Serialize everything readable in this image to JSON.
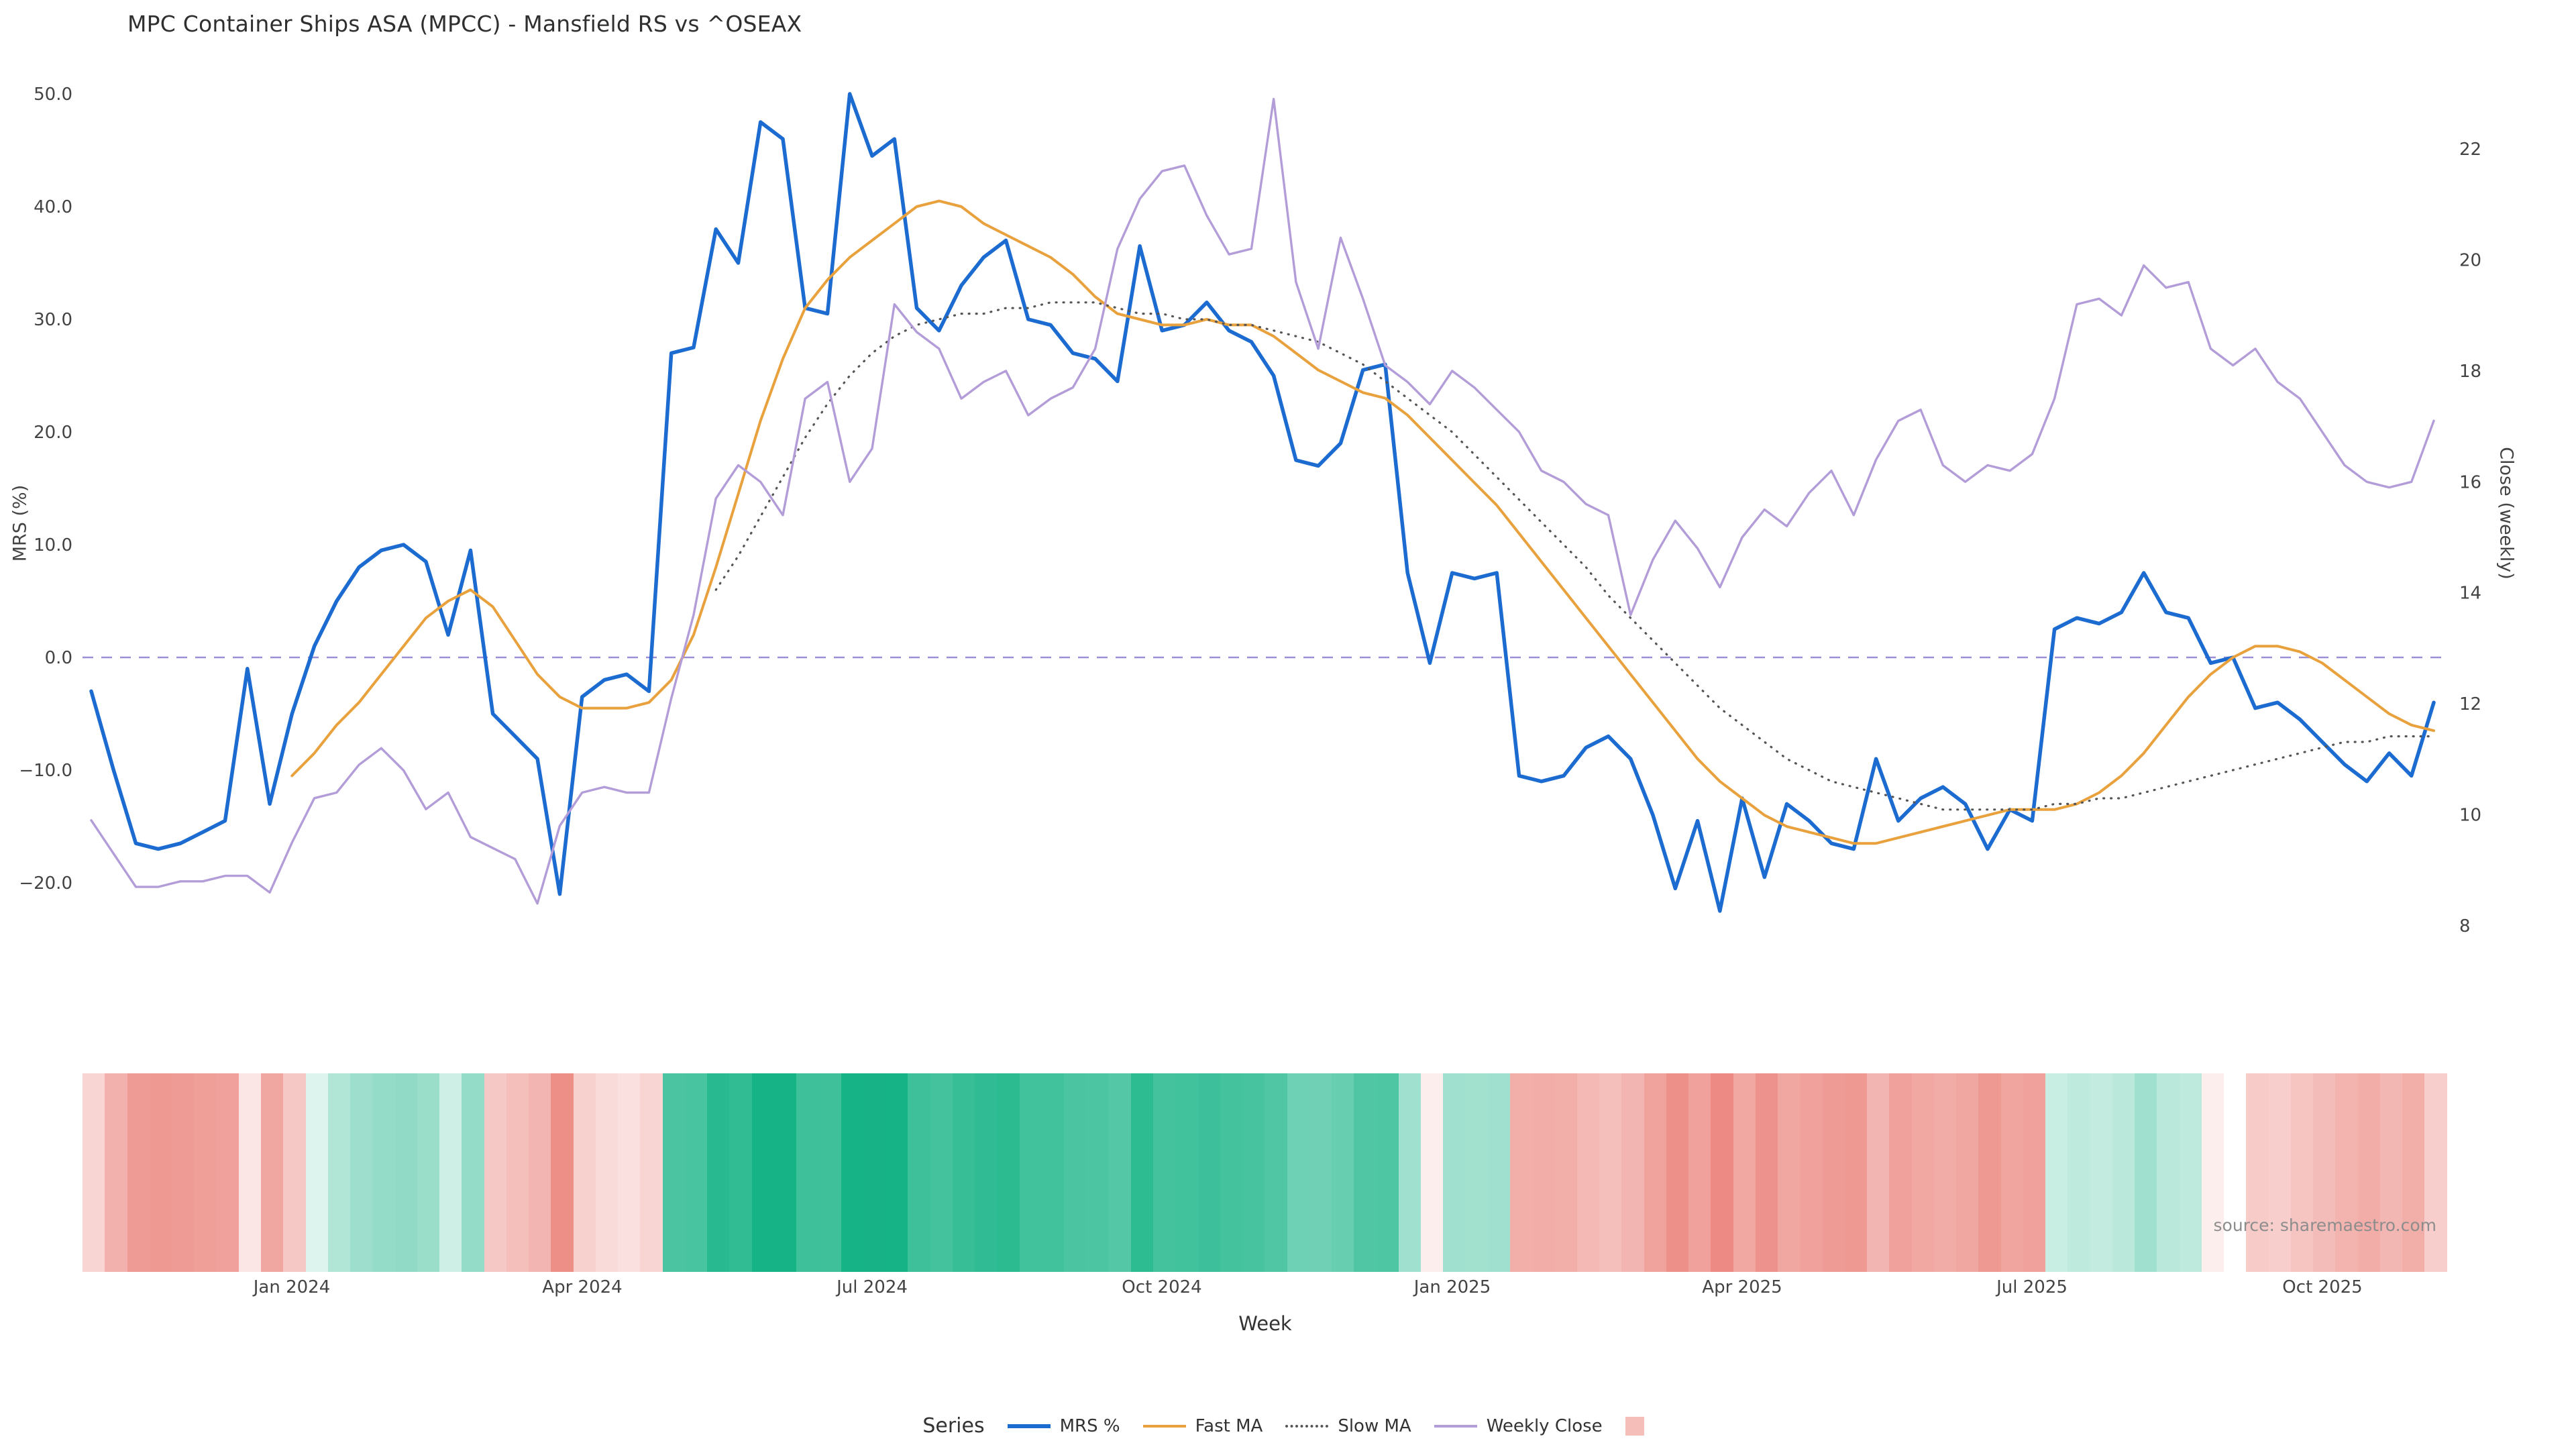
{
  "title": "MPC Container Ships ASA (MPCC) - Mansfield RS vs ^OSEAX",
  "source": "source: sharemaestro.com",
  "axes": {
    "left_label": "MRS (%)",
    "right_label": "Close (weekly)",
    "x_label": "Week",
    "left_ticks": [
      {
        "value": 50,
        "label": "50.0"
      },
      {
        "value": 40,
        "label": "40.0"
      },
      {
        "value": 30,
        "label": "30.0"
      },
      {
        "value": 20,
        "label": "20.0"
      },
      {
        "value": 10,
        "label": "10.0"
      },
      {
        "value": 0,
        "label": "0.0"
      },
      {
        "value": -10,
        "label": "−10.0"
      },
      {
        "value": -20,
        "label": "−20.0"
      }
    ],
    "right_ticks": [
      {
        "value": 22,
        "label": "22"
      },
      {
        "value": 20,
        "label": "20"
      },
      {
        "value": 18,
        "label": "18"
      },
      {
        "value": 16,
        "label": "16"
      },
      {
        "value": 14,
        "label": "14"
      },
      {
        "value": 12,
        "label": "12"
      },
      {
        "value": 10,
        "label": "10"
      },
      {
        "value": 8,
        "label": "8"
      }
    ]
  },
  "legend": {
    "title": "Series",
    "items": [
      {
        "label": "MRS %",
        "type": "line",
        "color": "#1c6bd0",
        "thick": true
      },
      {
        "label": "Fast MA",
        "type": "line",
        "color": "#e8a13c",
        "thick": false
      },
      {
        "label": "Slow MA",
        "type": "dotted-line",
        "color": "#555555",
        "thick": false
      },
      {
        "label": "Weekly Close",
        "type": "line",
        "color": "#b39dd8",
        "thick": false
      },
      {
        "label": "",
        "type": "swatch",
        "color": "#f5beb8"
      }
    ]
  },
  "chart_data": {
    "type": "line",
    "title": "MPC Container Ships ASA (MPCC) - Mansfield RS vs ^OSEAX",
    "xlabel": "Week",
    "ylabel_left": "MRS (%)",
    "ylabel_right": "Close (weekly)",
    "x_frequency": "weekly",
    "x_range_approx": [
      "2023-10-30",
      "2025-11-03"
    ],
    "ylim_left": [
      -27,
      52
    ],
    "ylim_right": [
      7.5,
      23.5
    ],
    "grid": false,
    "legend_position": "bottom",
    "zero_line": {
      "value": 0,
      "color": "#9d8fd6",
      "style": "dashed"
    },
    "x_ticks": [
      {
        "label": "Jan 2024",
        "week_index": 9
      },
      {
        "label": "Apr 2024",
        "week_index": 22
      },
      {
        "label": "Jul 2024",
        "week_index": 35
      },
      {
        "label": "Oct 2024",
        "week_index": 48
      },
      {
        "label": "Jan 2025",
        "week_index": 61
      },
      {
        "label": "Apr 2025",
        "week_index": 74
      },
      {
        "label": "Jul 2025",
        "week_index": 87
      },
      {
        "label": "Oct 2025",
        "week_index": 100
      }
    ],
    "series": [
      {
        "name": "MRS %",
        "axis": "left",
        "color": "#1c6bd0",
        "width": 5.5,
        "dash": null,
        "values": [
          -3,
          -10,
          -16.5,
          -17,
          -16.5,
          -15.5,
          -14.5,
          -1,
          -13,
          -5,
          1,
          5,
          8,
          9.5,
          10,
          8.5,
          2,
          9.5,
          -5,
          -7,
          -9,
          -21,
          -3.5,
          -2,
          -1.5,
          -3,
          27,
          27.5,
          38,
          35,
          47.5,
          46,
          31,
          30.5,
          50,
          44.5,
          46,
          31,
          29,
          33,
          35.5,
          37,
          30,
          29.5,
          27,
          26.5,
          24.5,
          36.5,
          29,
          29.5,
          31.5,
          29,
          28,
          25,
          17.5,
          17,
          19,
          25.5,
          26,
          7.5,
          -0.5,
          7.5,
          7,
          7.5,
          -10.5,
          -11,
          -10.5,
          -8,
          -7,
          -9,
          -14,
          -20.5,
          -14.5,
          -22.5,
          -12.5,
          -19.5,
          -13,
          -14.5,
          -16.5,
          -17,
          -9,
          -14.5,
          -12.5,
          -11.5,
          -13,
          -17,
          -13.5,
          -14.5,
          2.5,
          3.5,
          3,
          4,
          7.5,
          4,
          3.5,
          -0.5,
          0,
          -4.5,
          -4,
          -5.5,
          -7.5,
          -9.5,
          -11,
          -8.5,
          -10.5,
          -4
        ]
      },
      {
        "name": "Fast MA",
        "axis": "left",
        "color": "#e8a13c",
        "width": 4,
        "dash": null,
        "values": [
          null,
          null,
          null,
          null,
          null,
          null,
          null,
          null,
          null,
          -10.5,
          -8.5,
          -6,
          -4,
          -1.5,
          1,
          3.5,
          5,
          6,
          4.5,
          1.5,
          -1.5,
          -3.5,
          -4.5,
          -4.5,
          -4.5,
          -4,
          -2,
          2,
          8,
          14.5,
          21,
          26.5,
          31,
          33.5,
          35.5,
          37,
          38.5,
          40,
          40.5,
          40,
          38.5,
          37.5,
          36.5,
          35.5,
          34,
          32,
          30.5,
          30,
          29.5,
          29.5,
          30,
          29.5,
          29.5,
          28.5,
          27,
          25.5,
          24.5,
          23.5,
          23,
          21.5,
          19.5,
          17.5,
          15.5,
          13.5,
          11,
          8.5,
          6,
          3.5,
          1,
          -1.5,
          -4,
          -6.5,
          -9,
          -11,
          -12.5,
          -14,
          -15,
          -15.5,
          -16,
          -16.5,
          -16.5,
          -16,
          -15.5,
          -15,
          -14.5,
          -14,
          -13.5,
          -13.5,
          -13.5,
          -13,
          -12,
          -10.5,
          -8.5,
          -6,
          -3.5,
          -1.5,
          0,
          1,
          1,
          0.5,
          -0.5,
          -2,
          -3.5,
          -5,
          -6,
          -6.5
        ]
      },
      {
        "name": "Slow MA",
        "axis": "left",
        "color": "#555555",
        "width": 3.2,
        "dash": "1 10",
        "values": [
          null,
          null,
          null,
          null,
          null,
          null,
          null,
          null,
          null,
          null,
          null,
          null,
          null,
          null,
          null,
          null,
          null,
          null,
          null,
          null,
          null,
          null,
          null,
          null,
          null,
          null,
          null,
          null,
          6,
          9,
          12.5,
          16,
          19.5,
          22.5,
          25,
          27,
          28.5,
          29.5,
          30,
          30.5,
          30.5,
          31,
          31,
          31.5,
          31.5,
          31.5,
          31,
          30.5,
          30.5,
          30,
          30,
          29.5,
          29.5,
          29,
          28.5,
          28,
          27,
          26,
          24.5,
          23,
          21.5,
          20,
          18,
          16,
          14,
          12,
          10,
          8,
          5.5,
          3.5,
          1.5,
          -0.5,
          -2.5,
          -4.5,
          -6,
          -7.5,
          -9,
          -10,
          -11,
          -11.5,
          -12,
          -12.5,
          -13,
          -13.5,
          -13.5,
          -13.5,
          -13.5,
          -13.5,
          -13,
          -13,
          -12.5,
          -12.5,
          -12,
          -11.5,
          -11,
          -10.5,
          -10,
          -9.5,
          -9,
          -8.5,
          -8,
          -7.5,
          -7.5,
          -7,
          -7,
          -7
        ]
      },
      {
        "name": "Weekly Close",
        "axis": "right",
        "color": "#b39dd8",
        "width": 3.4,
        "dash": null,
        "values": [
          9.9,
          9.3,
          8.7,
          8.7,
          8.8,
          8.8,
          8.9,
          8.9,
          8.6,
          9.5,
          10.3,
          10.4,
          10.9,
          11.2,
          10.8,
          10.1,
          10.4,
          9.6,
          9.4,
          9.2,
          8.4,
          9.8,
          10.4,
          10.5,
          10.4,
          10.4,
          12.1,
          13.6,
          15.7,
          16.3,
          16.0,
          15.4,
          17.5,
          17.8,
          16.0,
          16.6,
          19.2,
          18.7,
          18.4,
          17.5,
          17.8,
          18.0,
          17.2,
          17.5,
          17.7,
          18.4,
          20.2,
          21.1,
          21.6,
          21.7,
          20.8,
          20.1,
          20.2,
          22.9,
          19.6,
          18.4,
          20.4,
          19.3,
          18.1,
          17.8,
          17.4,
          18.0,
          17.7,
          17.3,
          16.9,
          16.2,
          16.0,
          15.6,
          15.4,
          13.6,
          14.6,
          15.3,
          14.8,
          14.1,
          15.0,
          15.5,
          15.2,
          15.8,
          16.2,
          15.4,
          16.4,
          17.1,
          17.3,
          16.3,
          16.0,
          16.3,
          16.2,
          16.5,
          17.5,
          19.2,
          19.3,
          19.0,
          19.9,
          19.5,
          19.6,
          18.4,
          18.1,
          18.4,
          17.8,
          17.5,
          16.9,
          16.3,
          16.0,
          15.9,
          16.0,
          17.1
        ]
      }
    ],
    "heatmap": {
      "name": "MRS heat strip",
      "derived_from": "MRS %",
      "positive_color": "#16b386",
      "negative_color": "#e45a50",
      "scale_max": 45
    }
  }
}
